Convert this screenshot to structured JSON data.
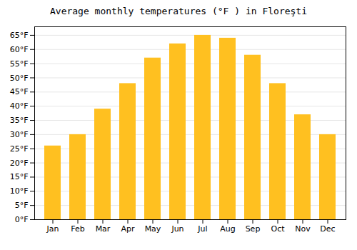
{
  "chart_data": {
    "type": "bar",
    "title": "Average monthly temperatures (°F ) in Floreşti",
    "categories": [
      "Jan",
      "Feb",
      "Mar",
      "Apr",
      "May",
      "Jun",
      "Jul",
      "Aug",
      "Sep",
      "Oct",
      "Nov",
      "Dec"
    ],
    "values": [
      26,
      30,
      39,
      48,
      57,
      62,
      65,
      64,
      58,
      48,
      37,
      30
    ],
    "color": "#FFC020",
    "ylim": [
      0,
      68
    ],
    "yticks": [
      {
        "value": 0,
        "label": "0°F"
      },
      {
        "value": 5,
        "label": "5°F"
      },
      {
        "value": 10,
        "label": "10°F"
      },
      {
        "value": 15,
        "label": "15°F"
      },
      {
        "value": 20,
        "label": "20°F"
      },
      {
        "value": 25,
        "label": "25°F"
      },
      {
        "value": 30,
        "label": "30°F"
      },
      {
        "value": 35,
        "label": "35°F"
      },
      {
        "value": 40,
        "label": "40°F"
      },
      {
        "value": 45,
        "label": "45°F"
      },
      {
        "value": 50,
        "label": "50°F"
      },
      {
        "value": 55,
        "label": "55°F"
      },
      {
        "value": 60,
        "label": "60°F"
      },
      {
        "value": 65,
        "label": "65°F"
      }
    ],
    "grid": true
  }
}
